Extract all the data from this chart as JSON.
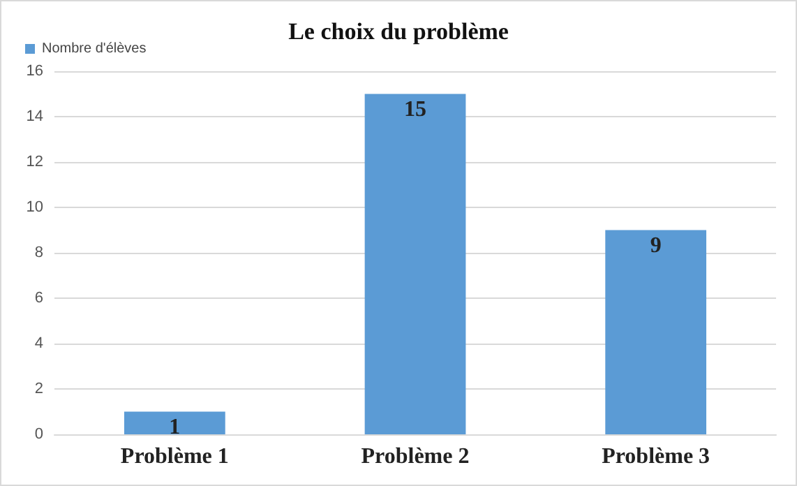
{
  "chart_data": {
    "type": "bar",
    "title": "Le choix du problème",
    "categories": [
      "Problème 1",
      "Problème 2",
      "Problème 3"
    ],
    "series": [
      {
        "name": "Nombre d'élèves",
        "color": "#5b9bd5",
        "values": [
          1,
          15,
          9
        ]
      }
    ],
    "ylim": [
      0,
      16
    ],
    "yticks": [
      0,
      2,
      4,
      6,
      8,
      10,
      12,
      14,
      16
    ],
    "grid": "y",
    "legend": "top left",
    "data_labels": true
  }
}
